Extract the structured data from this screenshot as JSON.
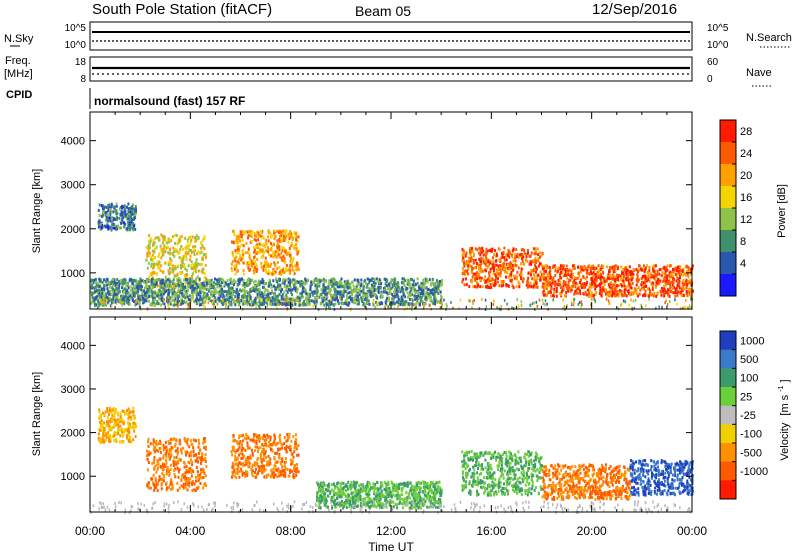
{
  "header": {
    "station": "South Pole Station (fitACF)",
    "beam": "Beam 05",
    "date": "12/Sep/2016"
  },
  "noise_panel": {
    "left_label": "N.Sky",
    "left_ticks": [
      "10^5",
      "10^0"
    ],
    "right_label": "N.Search",
    "right_ticks": [
      "10^5",
      "10^0"
    ]
  },
  "freq_panel": {
    "left_label_1": "Freq.",
    "left_label_2": "[MHz]",
    "left_ticks": [
      "18",
      "8"
    ],
    "right_label": "Nave",
    "right_ticks": [
      "60",
      "0"
    ]
  },
  "cpid": {
    "label": "CPID",
    "program": "normalsound (fast) 157 RF"
  },
  "power_colorbar": {
    "label": "Power [dB]",
    "ticks": [
      "28",
      "24",
      "20",
      "16",
      "12",
      "8",
      "4"
    ]
  },
  "velocity_colorbar": {
    "label_main": "Velocity",
    "label_unit": "[m s",
    "label_exp": "-1",
    "label_close": "]",
    "ticks": [
      "1000",
      "500",
      "100",
      "25",
      "-25",
      "-100",
      "-500",
      "-1000"
    ]
  },
  "xaxis": {
    "label": "Time UT",
    "ticks": [
      "00:00",
      "04:00",
      "08:00",
      "12:00",
      "16:00",
      "20:00",
      "00:00"
    ]
  },
  "colors": {
    "power_scale": [
      "#1a1aff",
      "#2a57b0",
      "#3f8f6a",
      "#8fc24a",
      "#f5d400",
      "#ffa000",
      "#ff5a00",
      "#ff1a00"
    ],
    "velocity_scale": [
      "#1f3fc0",
      "#3a7acb",
      "#3c9b6a",
      "#6bcf3a",
      "#bdbdbd",
      "#f0d000",
      "#ff9000",
      "#ff5a00",
      "#ff1a00"
    ]
  },
  "chart_data": [
    {
      "type": "heatmap",
      "title": "South Pole Station (fitACF)",
      "subtitle": "Beam 05",
      "xlabel": "Time UT",
      "ylabel": "Slant Range [km]",
      "x_ticks": [
        "00:00",
        "04:00",
        "08:00",
        "12:00",
        "16:00",
        "20:00",
        "00:00"
      ],
      "y_ticks": [
        1000,
        2000,
        3000,
        4000
      ],
      "ylim": [
        180,
        4650
      ],
      "xlim_hours": [
        0,
        24
      ],
      "colorbar": {
        "label": "Power [dB]",
        "range": [
          0,
          30
        ],
        "ticks": [
          4,
          8,
          12,
          16,
          20,
          24,
          28
        ]
      },
      "regions": [
        {
          "t0": 0.3,
          "t1": 1.8,
          "r0": 2000,
          "r1": 2600,
          "value": 8
        },
        {
          "t0": 2.2,
          "t1": 4.6,
          "r0": 700,
          "r1": 1900,
          "value": 18
        },
        {
          "t0": 5.6,
          "t1": 8.3,
          "r0": 1000,
          "r1": 2000,
          "value": 22
        },
        {
          "t0": 0.0,
          "t1": 14.0,
          "r0": 300,
          "r1": 900,
          "value": 10
        },
        {
          "t0": 14.8,
          "t1": 18.0,
          "r0": 700,
          "r1": 1600,
          "value": 26
        },
        {
          "t0": 18.0,
          "t1": 24.0,
          "r0": 500,
          "r1": 1200,
          "value": 27
        }
      ]
    },
    {
      "type": "heatmap",
      "xlabel": "Time UT",
      "ylabel": "Slant Range [km]",
      "x_ticks": [
        "00:00",
        "04:00",
        "08:00",
        "12:00",
        "16:00",
        "20:00",
        "00:00"
      ],
      "y_ticks": [
        1000,
        2000,
        3000,
        4000
      ],
      "ylim": [
        180,
        4650
      ],
      "xlim_hours": [
        0,
        24
      ],
      "colorbar": {
        "label": "Velocity [m s-1]",
        "ticks": [
          1000,
          500,
          100,
          25,
          -25,
          -100,
          -500,
          -1000
        ]
      },
      "regions": [
        {
          "t0": 0.3,
          "t1": 1.8,
          "r0": 1800,
          "r1": 2600,
          "value": -100
        },
        {
          "t0": 2.2,
          "t1": 4.6,
          "r0": 700,
          "r1": 1900,
          "value": -500
        },
        {
          "t0": 5.6,
          "t1": 8.3,
          "r0": 1000,
          "r1": 2000,
          "value": -500
        },
        {
          "t0": 9.0,
          "t1": 14.0,
          "r0": 300,
          "r1": 900,
          "value": 100
        },
        {
          "t0": 14.8,
          "t1": 18.0,
          "r0": 600,
          "r1": 1600,
          "value": 100
        },
        {
          "t0": 18.0,
          "t1": 21.5,
          "r0": 500,
          "r1": 1300,
          "value": -500
        },
        {
          "t0": 21.5,
          "t1": 24.0,
          "r0": 600,
          "r1": 1400,
          "value": 1000
        }
      ]
    }
  ]
}
